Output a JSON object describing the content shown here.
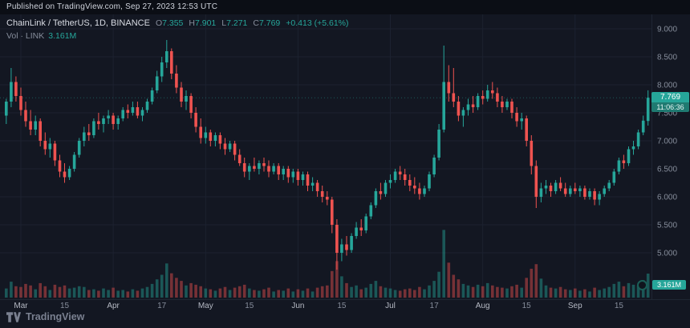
{
  "publish_bar": {
    "text": "Published on TradingView.com, Sep 27, 2023 12:53 UTC"
  },
  "header": {
    "symbol_title": "ChainLink / TetherUS, 1D, BINANCE",
    "ohlc": {
      "o_label": "O",
      "o_value": "7.355",
      "h_label": "H",
      "h_value": "7.901",
      "l_label": "L",
      "l_value": "7.271",
      "c_label": "C",
      "c_value": "7.769",
      "change": "+0.413 (+5.61%)"
    },
    "volume_row": {
      "label": "Vol · LINK",
      "value": "3.161M"
    }
  },
  "last_price": {
    "value": "7.769",
    "countdown": "11:06:36"
  },
  "volume_badge": {
    "value": "3.161M"
  },
  "footer": {
    "brand": "TradingView"
  },
  "colors": {
    "bg": "#131722",
    "publish_bar_bg": "#0b0e15",
    "up": "#26a69a",
    "down": "#ef5350",
    "vol_up": "rgba(38,166,154,0.45)",
    "vol_down": "rgba(239,83,80,0.45)",
    "grid": "#1c2230",
    "axis_text": "#868d9b",
    "axis_text_major": "#b6bac4",
    "title_text": "#d8dbe3",
    "label_gray": "#868d9b",
    "tag_bg": "#26a69a",
    "countdown_bg": "#1f7a71",
    "separator": "#1f2633"
  },
  "chart_data": {
    "type": "candlestick",
    "title": "ChainLink / TetherUS, 1D, BINANCE",
    "pair": "LINK/USDT",
    "exchange": "BINANCE",
    "interval": "1D",
    "legend_position": "top-left",
    "grid": true,
    "ylim": [
      4.6,
      9.3
    ],
    "price_axis": {
      "values": [
        9.0,
        8.5,
        8.0,
        7.5,
        7.0,
        6.5,
        6.0,
        5.5,
        5.0
      ],
      "labels": [
        "9.000",
        "8.500",
        "8.000",
        "7.500",
        "7.000",
        "6.500",
        "6.000",
        "5.500",
        "5.000"
      ]
    },
    "x_ticks": [
      {
        "i": 3,
        "label": "Mar",
        "major": true
      },
      {
        "i": 12,
        "label": "15",
        "major": false
      },
      {
        "i": 22,
        "label": "Apr",
        "major": true
      },
      {
        "i": 32,
        "label": "17",
        "major": false
      },
      {
        "i": 41,
        "label": "May",
        "major": true
      },
      {
        "i": 50,
        "label": "15",
        "major": false
      },
      {
        "i": 60,
        "label": "Jun",
        "major": true
      },
      {
        "i": 69,
        "label": "15",
        "major": false
      },
      {
        "i": 79,
        "label": "Jul",
        "major": true
      },
      {
        "i": 88,
        "label": "17",
        "major": false
      },
      {
        "i": 98,
        "label": "Aug",
        "major": true
      },
      {
        "i": 107,
        "label": "15",
        "major": false
      },
      {
        "i": 117,
        "label": "Sep",
        "major": true
      },
      {
        "i": 126,
        "label": "15",
        "major": false
      }
    ],
    "volume_unit": "millions",
    "candles_format": [
      "open",
      "high",
      "low",
      "close",
      "volume_m"
    ],
    "candles": [
      [
        7.45,
        7.75,
        7.3,
        7.7,
        1.2
      ],
      [
        7.7,
        8.3,
        7.6,
        8.05,
        2.1
      ],
      [
        8.05,
        8.15,
        7.7,
        7.8,
        1.5
      ],
      [
        7.8,
        7.95,
        7.45,
        7.55,
        1.4
      ],
      [
        7.55,
        7.7,
        7.25,
        7.35,
        1.8
      ],
      [
        7.35,
        7.55,
        7.1,
        7.2,
        1.6
      ],
      [
        7.2,
        7.45,
        7.1,
        7.35,
        1.1
      ],
      [
        7.35,
        7.4,
        6.9,
        7.0,
        1.9
      ],
      [
        7.0,
        7.15,
        6.75,
        6.85,
        1.5
      ],
      [
        6.85,
        7.05,
        6.7,
        6.95,
        1.0
      ],
      [
        6.95,
        7.0,
        6.55,
        6.65,
        1.7
      ],
      [
        6.65,
        6.75,
        6.35,
        6.45,
        1.4
      ],
      [
        6.45,
        6.6,
        6.25,
        6.35,
        1.6
      ],
      [
        6.35,
        6.55,
        6.3,
        6.5,
        1.2
      ],
      [
        6.5,
        6.8,
        6.45,
        6.75,
        1.3
      ],
      [
        6.75,
        7.05,
        6.7,
        7.0,
        1.5
      ],
      [
        7.0,
        7.25,
        6.9,
        7.15,
        1.4
      ],
      [
        7.15,
        7.3,
        7.0,
        7.1,
        1.0
      ],
      [
        7.1,
        7.4,
        7.05,
        7.35,
        1.1
      ],
      [
        7.35,
        7.5,
        7.2,
        7.3,
        0.9
      ],
      [
        7.3,
        7.45,
        7.15,
        7.4,
        1.2
      ],
      [
        7.4,
        7.55,
        7.3,
        7.45,
        1.0
      ],
      [
        7.45,
        7.5,
        7.2,
        7.3,
        1.3
      ],
      [
        7.3,
        7.45,
        7.2,
        7.4,
        0.9
      ],
      [
        7.4,
        7.6,
        7.35,
        7.55,
        1.0
      ],
      [
        7.55,
        7.65,
        7.4,
        7.5,
        0.8
      ],
      [
        7.5,
        7.7,
        7.45,
        7.6,
        1.1
      ],
      [
        7.6,
        7.7,
        7.4,
        7.45,
        0.9
      ],
      [
        7.45,
        7.6,
        7.35,
        7.55,
        1.2
      ],
      [
        7.55,
        7.75,
        7.5,
        7.7,
        1.4
      ],
      [
        7.7,
        7.95,
        7.65,
        7.9,
        1.8
      ],
      [
        7.9,
        8.25,
        7.85,
        8.15,
        2.4
      ],
      [
        8.15,
        8.5,
        8.05,
        8.4,
        3.0
      ],
      [
        8.4,
        8.8,
        8.3,
        8.6,
        4.5
      ],
      [
        8.6,
        8.65,
        8.1,
        8.2,
        3.2
      ],
      [
        8.2,
        8.35,
        7.85,
        7.95,
        2.6
      ],
      [
        7.95,
        8.05,
        7.6,
        7.7,
        2.2
      ],
      [
        7.7,
        7.9,
        7.55,
        7.8,
        1.6
      ],
      [
        7.8,
        7.85,
        7.4,
        7.5,
        1.9
      ],
      [
        7.5,
        7.6,
        7.15,
        7.25,
        1.7
      ],
      [
        7.25,
        7.4,
        6.95,
        7.05,
        1.5
      ],
      [
        7.05,
        7.25,
        6.95,
        7.15,
        1.2
      ],
      [
        7.15,
        7.2,
        6.9,
        7.0,
        1.1
      ],
      [
        7.0,
        7.15,
        6.9,
        7.1,
        0.9
      ],
      [
        7.1,
        7.15,
        6.85,
        6.95,
        1.2
      ],
      [
        6.95,
        7.05,
        6.75,
        6.85,
        1.4
      ],
      [
        6.85,
        7.0,
        6.8,
        6.95,
        1.0
      ],
      [
        6.95,
        7.0,
        6.65,
        6.75,
        1.3
      ],
      [
        6.75,
        6.85,
        6.55,
        6.6,
        1.5
      ],
      [
        6.6,
        6.7,
        6.35,
        6.45,
        1.7
      ],
      [
        6.45,
        6.6,
        6.3,
        6.55,
        1.2
      ],
      [
        6.55,
        6.7,
        6.45,
        6.5,
        1.0
      ],
      [
        6.5,
        6.65,
        6.4,
        6.6,
        0.9
      ],
      [
        6.6,
        6.7,
        6.45,
        6.55,
        1.1
      ],
      [
        6.55,
        6.65,
        6.35,
        6.45,
        1.3
      ],
      [
        6.45,
        6.6,
        6.4,
        6.55,
        0.8
      ],
      [
        6.55,
        6.6,
        6.3,
        6.4,
        1.0
      ],
      [
        6.4,
        6.55,
        6.3,
        6.5,
        0.9
      ],
      [
        6.5,
        6.55,
        6.25,
        6.35,
        1.2
      ],
      [
        6.35,
        6.5,
        6.25,
        6.45,
        0.8
      ],
      [
        6.45,
        6.5,
        6.2,
        6.3,
        1.1
      ],
      [
        6.3,
        6.45,
        6.2,
        6.4,
        0.9
      ],
      [
        6.4,
        6.45,
        6.1,
        6.2,
        1.2
      ],
      [
        6.2,
        6.35,
        6.1,
        6.25,
        0.8
      ],
      [
        6.25,
        6.3,
        6.0,
        6.1,
        1.3
      ],
      [
        6.1,
        6.2,
        5.9,
        6.0,
        1.5
      ],
      [
        6.0,
        6.1,
        5.85,
        5.95,
        1.6
      ],
      [
        5.95,
        6.0,
        5.35,
        5.5,
        3.5
      ],
      [
        5.5,
        5.6,
        4.7,
        5.0,
        4.8
      ],
      [
        5.0,
        5.25,
        4.85,
        5.15,
        2.8
      ],
      [
        5.15,
        5.3,
        4.95,
        5.05,
        1.9
      ],
      [
        5.05,
        5.35,
        5.0,
        5.3,
        1.4
      ],
      [
        5.3,
        5.55,
        5.25,
        5.45,
        1.6
      ],
      [
        5.45,
        5.6,
        5.3,
        5.4,
        1.1
      ],
      [
        5.4,
        5.7,
        5.35,
        5.65,
        1.3
      ],
      [
        5.65,
        5.9,
        5.6,
        5.85,
        1.8
      ],
      [
        5.85,
        6.15,
        5.8,
        6.1,
        2.2
      ],
      [
        6.1,
        6.25,
        5.95,
        6.05,
        1.5
      ],
      [
        6.05,
        6.3,
        6.0,
        6.25,
        1.3
      ],
      [
        6.25,
        6.4,
        6.15,
        6.3,
        1.2
      ],
      [
        6.3,
        6.5,
        6.25,
        6.45,
        1.0
      ],
      [
        6.45,
        6.55,
        6.3,
        6.4,
        0.9
      ],
      [
        6.4,
        6.5,
        6.2,
        6.3,
        1.1
      ],
      [
        6.3,
        6.4,
        6.1,
        6.2,
        1.2
      ],
      [
        6.2,
        6.35,
        6.05,
        6.15,
        1.0
      ],
      [
        6.15,
        6.25,
        5.95,
        6.05,
        1.4
      ],
      [
        6.05,
        6.2,
        6.0,
        6.15,
        1.1
      ],
      [
        6.15,
        6.45,
        6.1,
        6.4,
        1.6
      ],
      [
        6.4,
        6.75,
        6.35,
        6.7,
        2.2
      ],
      [
        6.7,
        7.3,
        6.65,
        7.2,
        3.4
      ],
      [
        7.2,
        8.7,
        7.15,
        8.05,
        8.9
      ],
      [
        8.05,
        8.35,
        7.7,
        7.85,
        4.6
      ],
      [
        7.85,
        8.3,
        7.6,
        7.7,
        3.0
      ],
      [
        7.7,
        7.8,
        7.35,
        7.45,
        2.4
      ],
      [
        7.45,
        7.6,
        7.25,
        7.55,
        1.8
      ],
      [
        7.55,
        7.75,
        7.45,
        7.65,
        1.6
      ],
      [
        7.65,
        7.8,
        7.5,
        7.6,
        1.4
      ],
      [
        7.6,
        7.85,
        7.55,
        7.8,
        1.7
      ],
      [
        7.8,
        7.9,
        7.65,
        7.75,
        1.5
      ],
      [
        7.75,
        8.0,
        7.7,
        7.9,
        1.9
      ],
      [
        7.9,
        8.05,
        7.75,
        7.85,
        1.6
      ],
      [
        7.85,
        7.95,
        7.6,
        7.7,
        1.4
      ],
      [
        7.7,
        7.8,
        7.5,
        7.6,
        1.3
      ],
      [
        7.6,
        7.75,
        7.55,
        7.7,
        1.2
      ],
      [
        7.7,
        7.75,
        7.4,
        7.5,
        1.5
      ],
      [
        7.5,
        7.6,
        7.25,
        7.35,
        1.7
      ],
      [
        7.35,
        7.5,
        7.2,
        7.4,
        1.3
      ],
      [
        7.4,
        7.45,
        6.9,
        7.0,
        2.6
      ],
      [
        7.0,
        7.1,
        6.4,
        6.55,
        3.8
      ],
      [
        6.55,
        6.65,
        5.8,
        6.0,
        4.4
      ],
      [
        6.0,
        6.25,
        5.9,
        6.15,
        2.5
      ],
      [
        6.15,
        6.3,
        6.05,
        6.2,
        1.6
      ],
      [
        6.2,
        6.25,
        6.0,
        6.1,
        1.3
      ],
      [
        6.1,
        6.3,
        6.05,
        6.25,
        1.2
      ],
      [
        6.25,
        6.35,
        6.1,
        6.15,
        1.4
      ],
      [
        6.15,
        6.25,
        6.0,
        6.05,
        1.1
      ],
      [
        6.05,
        6.2,
        6.0,
        6.15,
        1.0
      ],
      [
        6.15,
        6.25,
        6.05,
        6.1,
        1.2
      ],
      [
        6.1,
        6.2,
        6.0,
        6.15,
        0.9
      ],
      [
        6.15,
        6.2,
        5.95,
        6.0,
        1.1
      ],
      [
        6.0,
        6.15,
        5.95,
        6.1,
        0.8
      ],
      [
        6.1,
        6.15,
        5.85,
        5.95,
        1.3
      ],
      [
        5.95,
        6.1,
        5.85,
        6.05,
        1.0
      ],
      [
        6.05,
        6.2,
        6.0,
        6.15,
        1.2
      ],
      [
        6.15,
        6.3,
        6.1,
        6.25,
        1.4
      ],
      [
        6.25,
        6.5,
        6.2,
        6.45,
        1.8
      ],
      [
        6.45,
        6.7,
        6.4,
        6.65,
        2.1
      ],
      [
        6.65,
        6.75,
        6.5,
        6.6,
        1.5
      ],
      [
        6.6,
        6.9,
        6.55,
        6.85,
        1.9
      ],
      [
        6.85,
        7.0,
        6.75,
        6.9,
        1.7
      ],
      [
        6.9,
        7.2,
        6.85,
        7.15,
        1.6
      ],
      [
        7.15,
        7.45,
        7.1,
        7.36,
        2.3
      ],
      [
        7.355,
        7.901,
        7.271,
        7.769,
        3.161
      ]
    ],
    "last": {
      "open": 7.355,
      "high": 7.901,
      "low": 7.271,
      "close": 7.769,
      "change": 0.413,
      "change_pct": 5.61,
      "volume_m": 3.161,
      "countdown": "11:06:36"
    }
  }
}
